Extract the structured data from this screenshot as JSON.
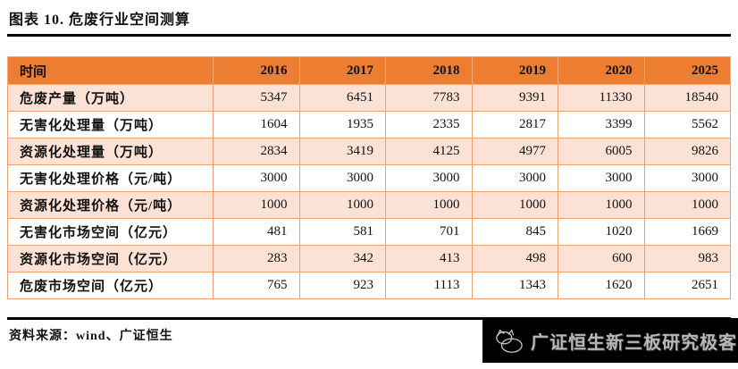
{
  "figure": {
    "title": "图表 10. 危废行业空间测算"
  },
  "table": {
    "header": [
      "时间",
      "2016",
      "2017",
      "2018",
      "2019",
      "2020",
      "2025"
    ],
    "rows": [
      {
        "label": "危废产量（万吨）",
        "values": [
          "5347",
          "6451",
          "7783",
          "9391",
          "11330",
          "18540"
        ]
      },
      {
        "label": "无害化处理量（万吨）",
        "values": [
          "1604",
          "1935",
          "2335",
          "2817",
          "3399",
          "5562"
        ]
      },
      {
        "label": "资源化处理量（万吨）",
        "values": [
          "2834",
          "3419",
          "4125",
          "4977",
          "6005",
          "9826"
        ]
      },
      {
        "label": "无害化处理价格（元/吨）",
        "values": [
          "3000",
          "3000",
          "3000",
          "3000",
          "3000",
          "3000"
        ]
      },
      {
        "label": "资源化处理价格（元/吨）",
        "values": [
          "1000",
          "1000",
          "1000",
          "1000",
          "1000",
          "1000"
        ]
      },
      {
        "label": "无害化市场空间（亿元）",
        "values": [
          "481",
          "581",
          "701",
          "845",
          "1020",
          "1669"
        ]
      },
      {
        "label": "资源化市场空间（亿元）",
        "values": [
          "283",
          "342",
          "413",
          "498",
          "600",
          "983"
        ]
      },
      {
        "label": "危废市场空间（亿元）",
        "values": [
          "765",
          "923",
          "1113",
          "1343",
          "1620",
          "2651"
        ]
      }
    ]
  },
  "footer": {
    "source": "资料来源：wind、广证恒生"
  },
  "watermark": {
    "text": "广证恒生新三板研究极客",
    "logo": "cat-doodle-icon"
  },
  "colors": {
    "header_bg": "#ED7D31",
    "row_alt_bg": "#FBE2D5",
    "border": "#EDA073",
    "badge_bg": "#000000",
    "badge_text": "#D8D8D8",
    "rule": "#000000"
  }
}
